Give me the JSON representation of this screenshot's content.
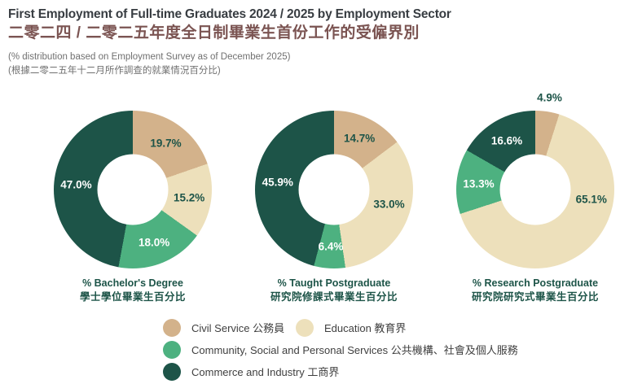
{
  "header": {
    "title_en": "First Employment of Full-time Graduates 2024 / 2025 by Employment Sector",
    "title_zh": "二零二四 / 二零二五年度全日制畢業生首份工作的受僱界別",
    "subtitle_en": "(% distribution based on Employment Survey as of December 2025)",
    "subtitle_zh": "(根據二零二五年十二月所作調查的就業情況百分比)"
  },
  "colors": {
    "civil_service": "#d3b28b",
    "education": "#ede0bb",
    "community": "#4db180",
    "commerce": "#1d5448",
    "caption_green": "#1d5448",
    "label_on_light": "#1d5448",
    "label_on_dark": "#ffffff",
    "title_en_color": "#383d42",
    "title_zh_color": "#7b5452",
    "subtitle_gray": "#707070"
  },
  "chart_data": [
    {
      "type": "pie",
      "style": "donut",
      "id": "bachelors-degree",
      "caption_en": "% Bachelor's Degree",
      "caption_zh": "學士學位畢業生百分比",
      "slices": [
        {
          "label": "Civil Service",
          "value": 19.7,
          "display": "19.7%",
          "color_key": "civil_service",
          "label_color": "dark"
        },
        {
          "label": "Education",
          "value": 15.2,
          "display": "15.2%",
          "color_key": "education",
          "label_color": "dark"
        },
        {
          "label": "Community, Social and Personal Services",
          "value": 18.0,
          "display": "18.0%",
          "color_key": "community",
          "label_color": "light"
        },
        {
          "label": "Commerce and Industry",
          "value": 47.0,
          "display": "47.0%",
          "color_key": "commerce",
          "label_color": "light"
        }
      ]
    },
    {
      "type": "pie",
      "style": "donut",
      "id": "taught-postgraduate",
      "caption_en": "% Taught Postgraduate",
      "caption_zh": "研究院修課式畢業生百分比",
      "slices": [
        {
          "label": "Civil Service",
          "value": 14.7,
          "display": "14.7%",
          "color_key": "civil_service",
          "label_color": "dark"
        },
        {
          "label": "Education",
          "value": 33.0,
          "display": "33.0%",
          "color_key": "education",
          "label_color": "dark",
          "label_angle": 105
        },
        {
          "label": "Community, Social and Personal Services",
          "value": 6.4,
          "display": "6.4%",
          "color_key": "community",
          "label_color": "light"
        },
        {
          "label": "Commerce and Industry",
          "value": 45.9,
          "display": "45.9%",
          "color_key": "commerce",
          "label_color": "light"
        }
      ]
    },
    {
      "type": "pie",
      "style": "donut",
      "id": "research-postgraduate",
      "caption_en": "% Research Postgraduate",
      "caption_zh": "研究院研究式畢業生百分比",
      "slices": [
        {
          "label": "Civil Service",
          "value": 4.9,
          "display": "4.9%",
          "color_key": "civil_service",
          "label_color": "dark",
          "label_outside": true
        },
        {
          "label": "Education",
          "value": 65.1,
          "display": "65.1%",
          "color_key": "education",
          "label_color": "dark",
          "label_angle": 100
        },
        {
          "label": "Community, Social and Personal Services",
          "value": 13.3,
          "display": "13.3%",
          "color_key": "community",
          "label_color": "light"
        },
        {
          "label": "Commerce and Industry",
          "value": 16.6,
          "display": "16.6%",
          "color_key": "commerce",
          "label_color": "light"
        }
      ]
    }
  ],
  "legend": {
    "rows": [
      [
        {
          "id": "civil-service",
          "label_en": "Civil Service",
          "label_zh": "公務員",
          "color_key": "civil_service"
        },
        {
          "id": "education",
          "label_en": "Education",
          "label_zh": "教育界",
          "color_key": "education"
        }
      ],
      [
        {
          "id": "community-social-personal-services",
          "label_en": "Community, Social and Personal Services",
          "label_zh": "公共機構、社會及個人服務",
          "color_key": "community"
        }
      ],
      [
        {
          "id": "commerce-and-industry",
          "label_en": "Commerce and Industry",
          "label_zh": "工商界",
          "color_key": "commerce"
        }
      ]
    ]
  }
}
